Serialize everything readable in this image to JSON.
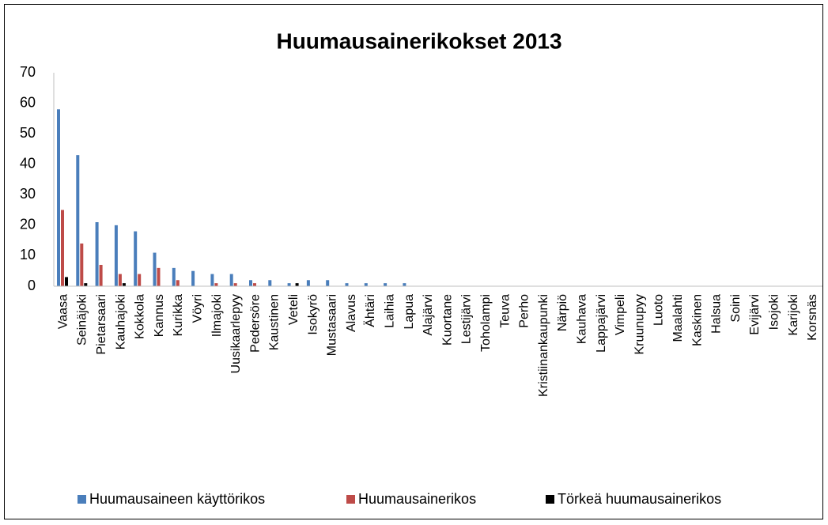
{
  "chart_data": {
    "type": "bar",
    "title": "Huumausainerikokset 2013",
    "categories": [
      "Vaasa",
      "Seinäjoki",
      "Pietarsaari",
      "Kauhajoki",
      "Kokkola",
      "Kannus",
      "Kurikka",
      "Vöyri",
      "Ilmajoki",
      "Uusikaarlepyy",
      "Pedersöre",
      "Kaustinen",
      "Veteli",
      "Isokyrö",
      "Mustasaari",
      "Alavus",
      "Ähtäri",
      "Laihia",
      "Lapua",
      "Alajärvi",
      "Kuortane",
      "Lestijärvi",
      "Toholampi",
      "Teuva",
      "Perho",
      "Kristiinankaupunki",
      "Närpiö",
      "Kauhava",
      "Lappajärvi",
      "Vimpeli",
      "Kruunupyy",
      "Luoto",
      "Maalahti",
      "Kaskinen",
      "Halsua",
      "Soini",
      "Evijärvi",
      "Isojoki",
      "Karijoki",
      "Korsnäs"
    ],
    "series": [
      {
        "name": "Huumausaineen käyttörikos",
        "color": "#4a7ebb",
        "values": [
          58,
          43,
          21,
          20,
          18,
          11,
          6,
          5,
          4,
          4,
          2,
          2,
          1,
          2,
          2,
          1,
          1,
          1,
          1,
          0,
          0,
          0,
          0,
          0,
          0,
          0,
          0,
          0,
          0,
          0,
          0,
          0,
          0,
          0,
          0,
          0,
          0,
          0,
          0,
          0
        ]
      },
      {
        "name": "Huumausainerikos",
        "color": "#be4b48",
        "values": [
          25,
          14,
          7,
          4,
          4,
          6,
          2,
          0,
          1,
          1,
          1,
          0,
          0,
          0,
          0,
          0,
          0,
          0,
          0,
          0,
          0,
          0,
          0,
          0,
          0,
          0,
          0,
          0,
          0,
          0,
          0,
          0,
          0,
          0,
          0,
          0,
          0,
          0,
          0,
          0
        ]
      },
      {
        "name": "Törkeä huumausainerikos",
        "color": "#000000",
        "values": [
          3,
          1,
          0,
          1,
          0,
          0,
          0,
          0,
          0,
          0,
          0,
          0,
          1,
          0,
          0,
          0,
          0,
          0,
          0,
          0,
          0,
          0,
          0,
          0,
          0,
          0,
          0,
          0,
          0,
          0,
          0,
          0,
          0,
          0,
          0,
          0,
          0,
          0,
          0,
          0
        ]
      }
    ],
    "ylim": [
      0,
      70
    ],
    "yticks": [
      0,
      10,
      20,
      30,
      40,
      50,
      60,
      70
    ],
    "grid": false,
    "legend": "bottom"
  }
}
